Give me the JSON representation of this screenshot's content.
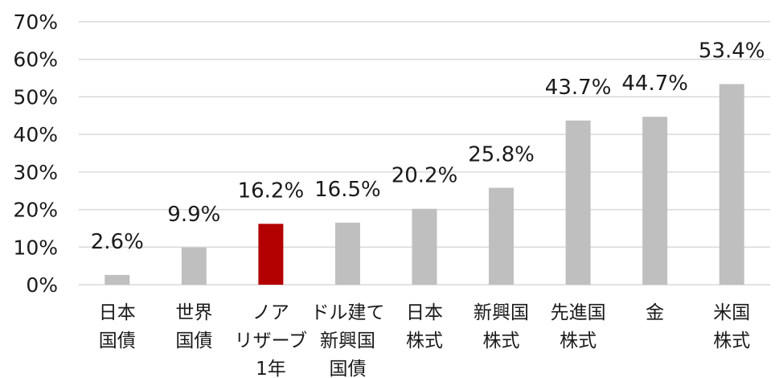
{
  "chart_data": {
    "type": "bar",
    "categories": [
      [
        "日本",
        "国債"
      ],
      [
        "世界",
        "国債"
      ],
      [
        "ノア",
        "リザーブ",
        "1年"
      ],
      [
        "ドル建て",
        "新興国",
        "国債"
      ],
      [
        "日本",
        "株式"
      ],
      [
        "新興国",
        "株式"
      ],
      [
        "先進国",
        "株式"
      ],
      [
        "金"
      ],
      [
        "米国",
        "株式"
      ]
    ],
    "values": [
      2.6,
      9.9,
      16.2,
      16.5,
      20.2,
      25.8,
      43.7,
      44.7,
      53.4
    ],
    "data_labels": [
      "2.6%",
      "9.9%",
      "16.2%",
      "16.5%",
      "20.2%",
      "25.8%",
      "43.7%",
      "44.7%",
      "53.4%"
    ],
    "ylim": [
      0,
      70
    ],
    "yticks": [
      0,
      10,
      20,
      30,
      40,
      50,
      60,
      70
    ],
    "ytick_labels": [
      "0%",
      "10%",
      "20%",
      "30%",
      "40%",
      "50%",
      "60%",
      "70%"
    ],
    "grid": true,
    "colors": {
      "default": "#bfbfbf",
      "highlight": "#b30000",
      "highlight_index": 2
    }
  }
}
